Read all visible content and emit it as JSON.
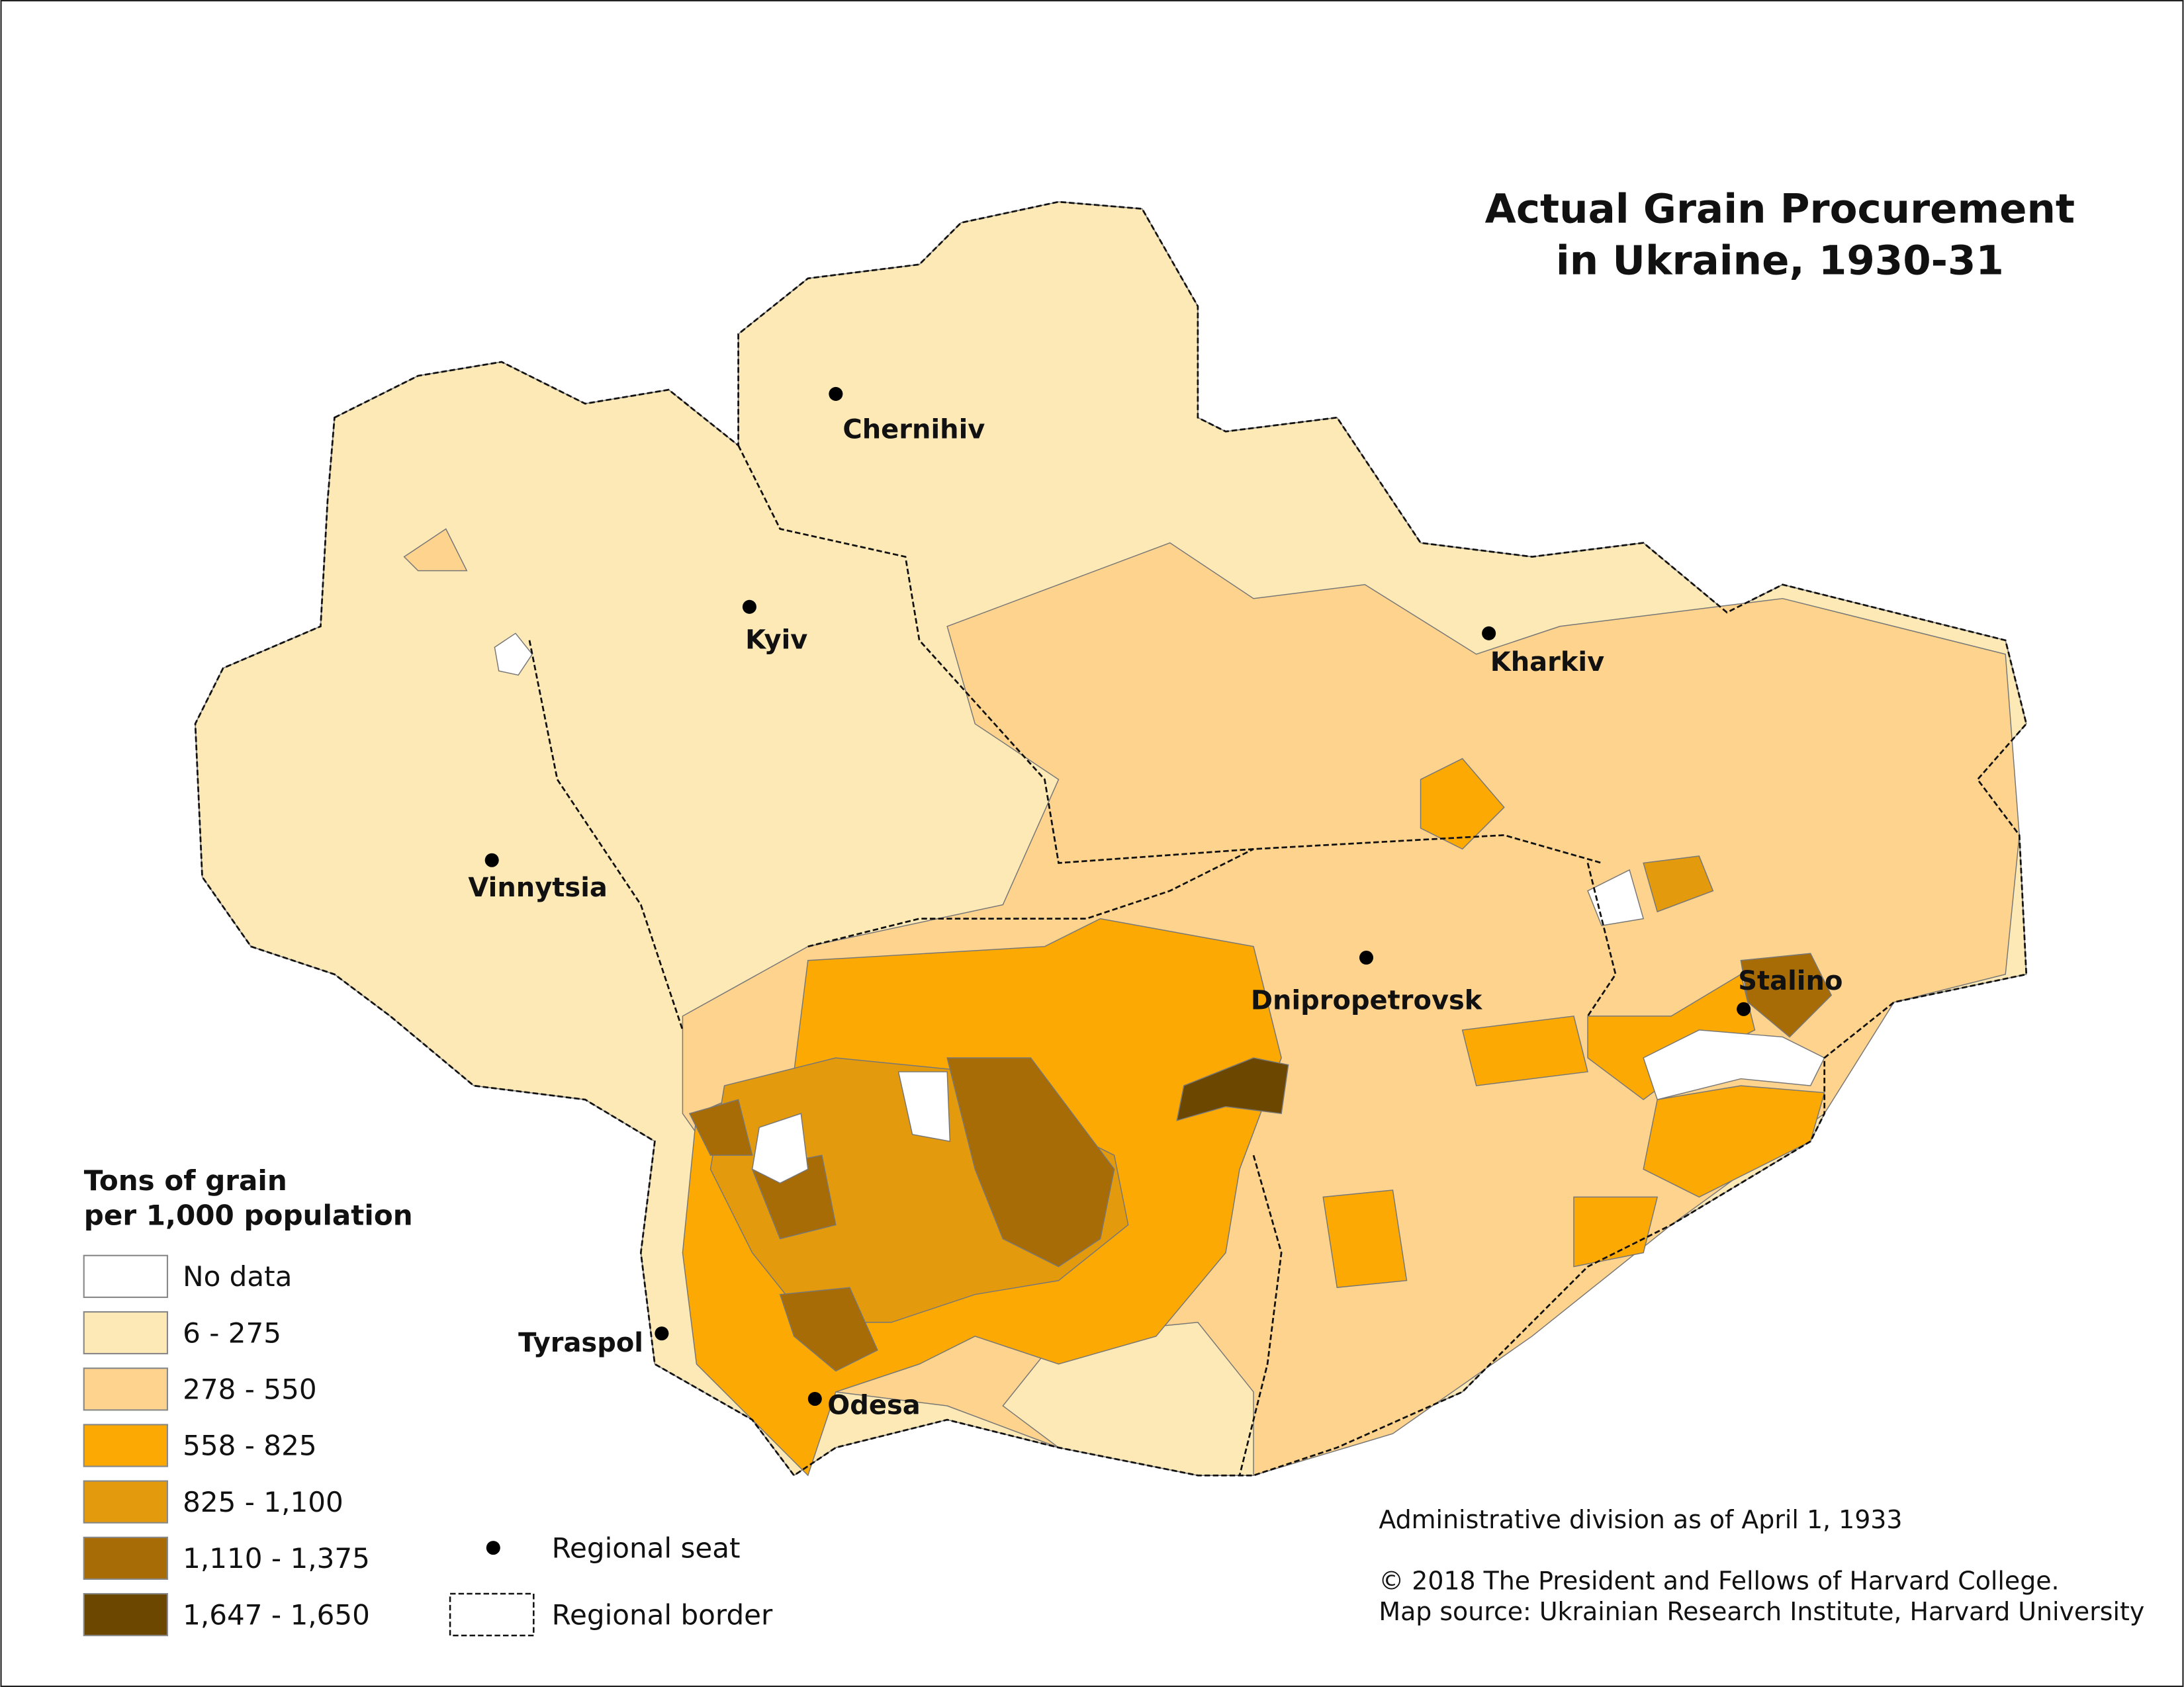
{
  "title": [
    "Actual Grain Procurement",
    "in Ukraine, 1930-31"
  ],
  "cities": [
    "Chernihiv",
    "Kyiv",
    "Kharkiv",
    "Vinnytsia",
    "Dnipropetrovsk",
    "Stalino",
    "Tyraspol",
    "Odesa"
  ],
  "legend": {
    "title": [
      "Tons of grain",
      "per 1,000 population"
    ],
    "items": [
      {
        "label": "No data",
        "color": "#ffffff"
      },
      {
        "label": "6 - 275",
        "color": "#fde9b6"
      },
      {
        "label": "278 - 550",
        "color": "#fdd38d"
      },
      {
        "label": "558 - 825",
        "color": "#fca904"
      },
      {
        "label": "825 - 1,100",
        "color": "#e39a0c"
      },
      {
        "label": "1,110 - 1,375",
        "color": "#a86c06"
      },
      {
        "label": "1,647 - 1,650",
        "color": "#6b4700"
      }
    ],
    "symbols": [
      "Regional seat",
      "Regional border"
    ]
  },
  "notes": [
    "Administrative division as of April 1, 1933",
    "© 2018 The President and Fellows of Harvard College.",
    "Map source: Ukrainian Research Institute, Harvard University"
  ]
}
